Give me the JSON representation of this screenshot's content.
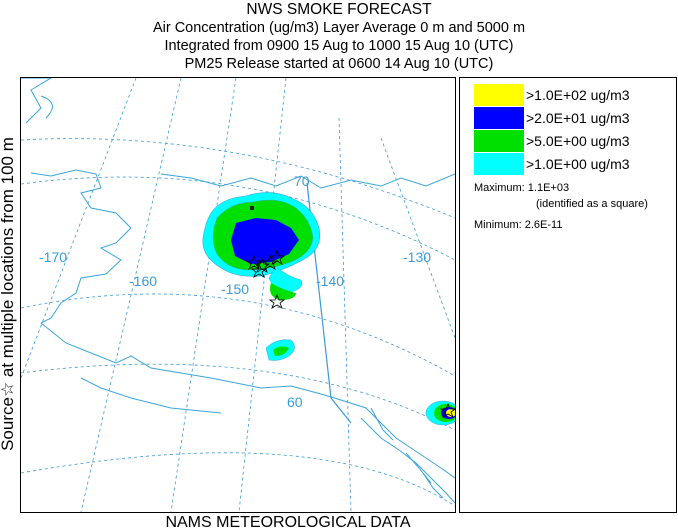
{
  "header": {
    "title": "NWS SMOKE FORECAST",
    "line2": "Air Concentration (ug/m3) Layer Average    0 m and  5000 m",
    "line3": "Integrated from 0900 15 Aug to 1000 15 Aug 10 (UTC)",
    "line4": "PM25 Release started at 0600 14 Aug 10 (UTC)"
  },
  "side_label": "Source☆ at multiple locations from 100 m",
  "footer": "NAMS METEOROLOGICAL DATA",
  "map": {
    "grid_labels": {
      "lat_70": "70",
      "lat_60": "60",
      "lon_170": "-170",
      "lon_160": "-160",
      "lon_150": "-150",
      "lon_140": "-140",
      "lon_130": "-130"
    },
    "colors": {
      "coast": "#3aa6d8",
      "grid": "#3a9ad9",
      "border": "#3a9ad9"
    }
  },
  "legend": {
    "items": [
      {
        "label": ">1.0E+02 ug/m3",
        "color": "#ffff00"
      },
      {
        "label": ">2.0E+01 ug/m3",
        "color": "#0000ff"
      },
      {
        "label": ">5.0E+00 ug/m3",
        "color": "#00e000"
      },
      {
        "label": ">1.0E+00 ug/m3",
        "color": "#00ffff"
      }
    ],
    "maximum": "Maximum: 1.1E+03",
    "maximum_note": "(identified as a square)",
    "minimum": "Minimum: 2.6E-11"
  }
}
